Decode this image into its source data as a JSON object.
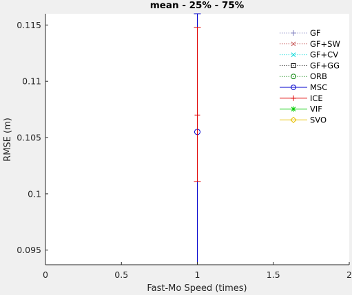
{
  "chart_data": {
    "type": "scatter",
    "title": "mean - 25% - 75%",
    "xlabel": "Fast-Mo Speed (times)",
    "ylabel": "RMSE (m)",
    "xlim": [
      0,
      2
    ],
    "ylim": [
      0.0937,
      0.116
    ],
    "grid": false,
    "legend_position": "top-right",
    "x_ticks": [
      0,
      0.5,
      1,
      1.5,
      2
    ],
    "x_tick_labels": [
      "0",
      "0.5",
      "1",
      "1.5",
      "2"
    ],
    "y_ticks": [
      0.095,
      0.1,
      0.105,
      0.11,
      0.115
    ],
    "y_tick_labels": [
      "0.095",
      "0.1",
      "0.105",
      "0.11",
      "0.115"
    ],
    "legend": [
      {
        "name": "GF",
        "color": "#7f7fbf",
        "marker": "plus",
        "line": "dotted"
      },
      {
        "name": "GF+SW",
        "color": "#bf4040",
        "marker": "x",
        "line": "dotted"
      },
      {
        "name": "GF+CV",
        "color": "#00d8d8",
        "marker": "x",
        "line": "dotted"
      },
      {
        "name": "GF+GG",
        "color": "#000000",
        "marker": "square",
        "line": "dotted"
      },
      {
        "name": "ORB",
        "color": "#008000",
        "marker": "circle",
        "line": "dotted"
      },
      {
        "name": "MSC",
        "color": "#0000cc",
        "marker": "circle",
        "line": "solid"
      },
      {
        "name": "ICE",
        "color": "#e00000",
        "marker": "plus",
        "line": "solid"
      },
      {
        "name": "VIF",
        "color": "#00cc00",
        "marker": "asterisk",
        "line": "solid"
      },
      {
        "name": "SVO",
        "color": "#e8c000",
        "marker": "diamond",
        "line": "solid"
      }
    ],
    "series": [
      {
        "name": "MSC",
        "color": "#0000cc",
        "points": [
          {
            "x": 1,
            "mean": 0.1055,
            "q25": 0.0937,
            "q75": 0.116
          }
        ]
      },
      {
        "name": "ICE",
        "color": "#e00000",
        "points": [
          {
            "x": 1,
            "mean": 0.107,
            "q25": 0.1011,
            "q75": 0.1148
          }
        ]
      }
    ]
  }
}
